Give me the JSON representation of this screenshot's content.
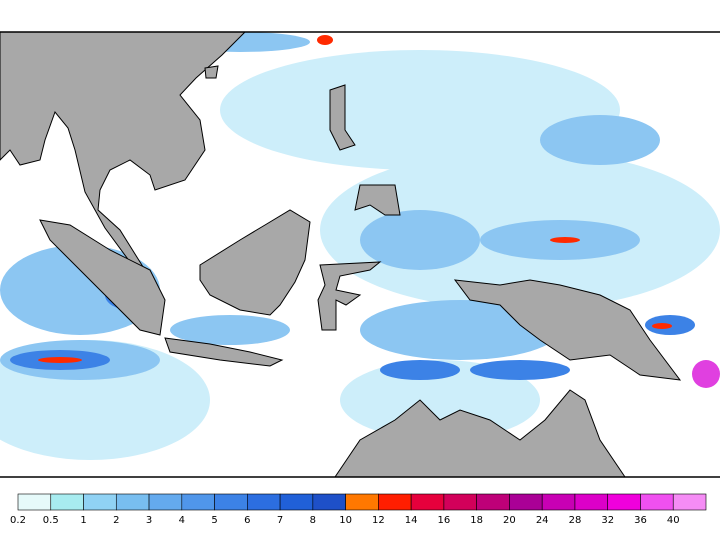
{
  "legend": {
    "levels": [
      0.2,
      0.5,
      1,
      2,
      3,
      4,
      5,
      6,
      7,
      8,
      10,
      12,
      14,
      16,
      18,
      20,
      24,
      28,
      32,
      36,
      40
    ],
    "colors": [
      "#e6fafa",
      "#a8ecf0",
      "#90d2f4",
      "#78bef0",
      "#64aaee",
      "#5096ea",
      "#3c82e6",
      "#2c6ee0",
      "#2060d8",
      "#1e50c8",
      "#ff7800",
      "#ff1e00",
      "#e6003c",
      "#d2005a",
      "#be0078",
      "#aa0096",
      "#c800b4",
      "#dc00c8",
      "#f000dc",
      "#f050f0",
      "#f58cf5"
    ]
  }
}
